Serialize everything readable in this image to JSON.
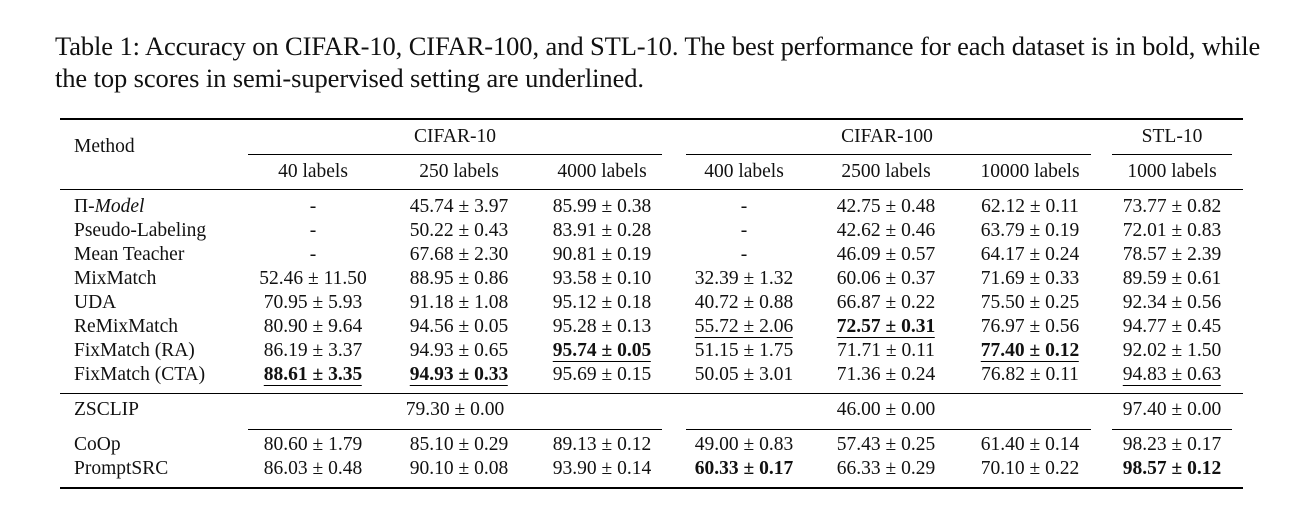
{
  "caption": "Table 1: Accuracy on CIFAR-10, CIFAR-100, and STL-10. The best performance for each dataset is in bold, while the top scores in semi-supervised setting are underlined.",
  "header": {
    "method": "Method",
    "groups": [
      "CIFAR-10",
      "CIFAR-100",
      "STL-10"
    ],
    "columns": [
      "40 labels",
      "250 labels",
      "4000 labels",
      "400 labels",
      "2500 labels",
      "10000 labels",
      "1000 labels"
    ]
  },
  "rows": [
    {
      "method_prefix": "Π-",
      "method_italic": "Model",
      "cells": [
        "-",
        "45.74 ± 3.97",
        "85.99 ± 0.38",
        "-",
        "42.75 ± 0.48",
        "62.12 ± 0.11",
        "73.77 ± 0.82"
      ]
    },
    {
      "method": "Pseudo-Labeling",
      "cells": [
        "-",
        "50.22 ± 0.43",
        "83.91 ± 0.28",
        "-",
        "42.62 ± 0.46",
        "63.79 ± 0.19",
        "72.01 ± 0.83"
      ]
    },
    {
      "method": "Mean Teacher",
      "cells": [
        "-",
        "67.68 ± 2.30",
        "90.81 ± 0.19",
        "-",
        "46.09 ± 0.57",
        "64.17 ± 0.24",
        "78.57 ± 2.39"
      ]
    },
    {
      "method": "MixMatch",
      "cells": [
        "52.46 ± 11.50",
        "88.95 ± 0.86",
        "93.58 ± 0.10",
        "32.39 ± 1.32",
        "60.06 ± 0.37",
        "71.69 ± 0.33",
        "89.59 ± 0.61"
      ]
    },
    {
      "method": "UDA",
      "cells": [
        "70.95 ± 5.93",
        "91.18 ± 1.08",
        "95.12 ± 0.18",
        "40.72 ± 0.88",
        "66.87 ± 0.22",
        "75.50 ± 0.25",
        "92.34 ± 0.56"
      ]
    },
    {
      "method": "ReMixMatch",
      "cells": [
        "80.90 ± 9.64",
        "94.56 ± 0.05",
        "95.28 ± 0.13",
        "55.72 ± 2.06",
        "72.57 ± 0.31",
        "76.97 ± 0.56",
        "94.77 ± 0.45"
      ]
    },
    {
      "method": "FixMatch (RA)",
      "cells": [
        "86.19 ± 3.37",
        "94.93 ± 0.65",
        "95.74 ± 0.05",
        "51.15 ± 1.75",
        "71.71 ± 0.11",
        "77.40 ± 0.12",
        "92.02 ± 1.50"
      ]
    },
    {
      "method": "FixMatch (CTA)",
      "cells": [
        "88.61 ± 3.35",
        "94.93 ± 0.33",
        "95.69 ± 0.15",
        "50.05 ± 3.01",
        "71.36 ± 0.24",
        "76.82 ± 0.11",
        "94.83 ± 0.63"
      ]
    }
  ],
  "zsclip": {
    "method": "ZSCLIP",
    "cifar10": "79.30 ± 0.00",
    "cifar100": "46.00 ± 0.00",
    "stl10": "97.40 ± 0.00"
  },
  "prompt_rows": [
    {
      "method": "CoOp",
      "cells": [
        "80.60 ± 1.79",
        "85.10 ± 0.29",
        "89.13 ± 0.12",
        "49.00 ± 0.83",
        "57.43 ± 0.25",
        "61.40 ± 0.14",
        "98.23 ± 0.17"
      ]
    },
    {
      "method": "PromptSRC",
      "cells": [
        "86.03 ± 0.48",
        "90.10 ± 0.08",
        "93.90 ± 0.14",
        "60.33 ± 0.17",
        "66.33 ± 0.29",
        "70.10 ± 0.22",
        "98.57 ± 0.12"
      ]
    }
  ],
  "formatting": {
    "bold": [
      [
        5,
        4
      ],
      [
        6,
        2
      ],
      [
        6,
        5
      ],
      [
        7,
        0
      ],
      [
        7,
        1
      ],
      [
        9,
        3
      ],
      [
        9,
        6
      ]
    ],
    "underline": [
      [
        5,
        3
      ],
      [
        5,
        4
      ],
      [
        6,
        2
      ],
      [
        6,
        5
      ],
      [
        7,
        0
      ],
      [
        7,
        1
      ],
      [
        7,
        6
      ]
    ],
    "note": ""
  }
}
